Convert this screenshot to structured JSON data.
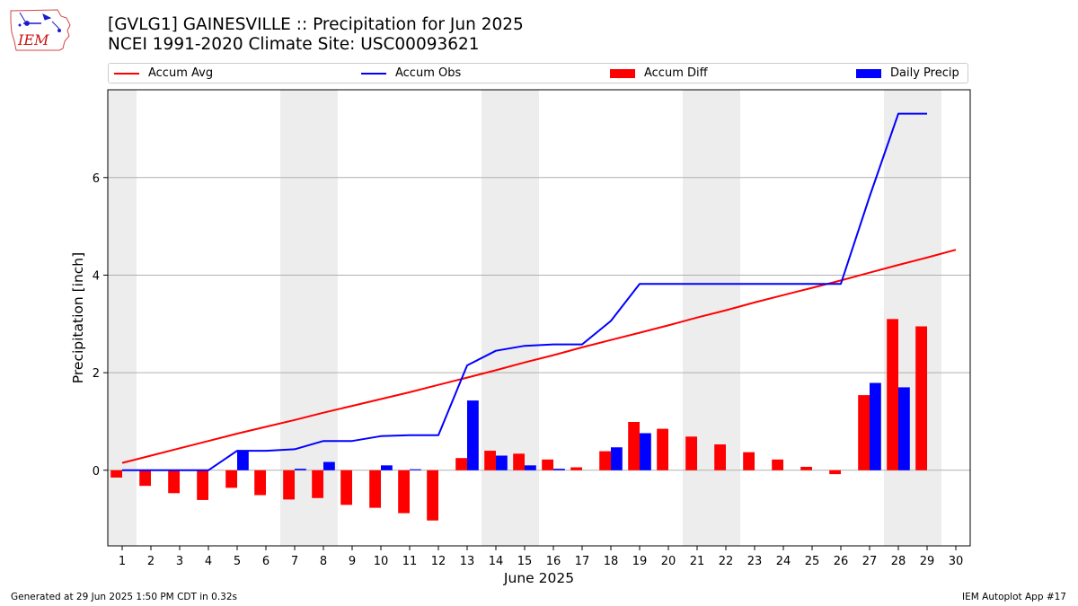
{
  "header": {
    "title": "[GVLG1] GAINESVILLE :: Precipitation for Jun 2025",
    "subtitle": "NCEI 1991-2020 Climate Site: USC00093621"
  },
  "logo": {
    "text": "IEM",
    "icon": "iem-iowa-weather-logo"
  },
  "legend": [
    {
      "label": "Accum Avg",
      "kind": "line",
      "color": "#ff0000"
    },
    {
      "label": "Accum Obs",
      "kind": "line",
      "color": "#0000ff"
    },
    {
      "label": "Accum Diff",
      "kind": "bar",
      "color": "#ff0000"
    },
    {
      "label": "Daily Precip",
      "kind": "bar",
      "color": "#0000ff"
    }
  ],
  "footer": {
    "left": "Generated at 29 Jun 2025 1:50 PM CDT in 0.32s",
    "right": "IEM Autoplot App #17"
  },
  "chart_data": {
    "type": "bar",
    "xlabel": "June 2025",
    "ylabel": "Precipitation [inch]",
    "xlim": [
      0.5,
      30.5
    ],
    "ylim": [
      -1.55,
      7.8
    ],
    "yticks": [
      0,
      2,
      4,
      6
    ],
    "grid": "y",
    "legend_position": "top",
    "weekend_shading_days": [
      1,
      7,
      8,
      14,
      15,
      21,
      22,
      28,
      29
    ],
    "categories": [
      1,
      2,
      3,
      4,
      5,
      6,
      7,
      8,
      9,
      10,
      11,
      12,
      13,
      14,
      15,
      16,
      17,
      18,
      19,
      20,
      21,
      22,
      23,
      24,
      25,
      26,
      27,
      28,
      29,
      30
    ],
    "series": [
      {
        "name": "Accum Avg",
        "type": "line",
        "color": "#ff0000",
        "values": [
          0.15,
          0.3,
          0.45,
          0.6,
          0.75,
          0.89,
          1.03,
          1.18,
          1.32,
          1.46,
          1.6,
          1.75,
          1.9,
          2.05,
          2.21,
          2.36,
          2.52,
          2.67,
          2.82,
          2.97,
          3.13,
          3.28,
          3.44,
          3.59,
          3.74,
          3.89,
          4.05,
          4.21,
          4.36,
          4.52
        ]
      },
      {
        "name": "Accum Obs",
        "type": "line",
        "color": "#0000ff",
        "values": [
          0.0,
          0.0,
          0.0,
          0.0,
          0.4,
          0.4,
          0.43,
          0.6,
          0.6,
          0.7,
          0.72,
          0.72,
          2.15,
          2.45,
          2.55,
          2.58,
          2.58,
          3.06,
          3.82,
          3.82,
          3.82,
          3.82,
          3.82,
          3.82,
          3.82,
          3.82,
          5.61,
          7.31,
          7.31,
          null
        ]
      },
      {
        "name": "Accum Diff",
        "type": "bar",
        "color": "#ff0000",
        "values": [
          -0.15,
          -0.32,
          -0.47,
          -0.61,
          -0.36,
          -0.51,
          -0.6,
          -0.57,
          -0.71,
          -0.77,
          -0.88,
          -1.03,
          0.25,
          0.4,
          0.34,
          0.22,
          0.06,
          0.39,
          0.99,
          0.85,
          0.69,
          0.53,
          0.37,
          0.22,
          0.07,
          -0.08,
          1.54,
          3.1,
          2.95,
          null
        ]
      },
      {
        "name": "Daily Precip",
        "type": "bar",
        "color": "#0000ff",
        "values": [
          0.0,
          0.0,
          0.0,
          0.0,
          0.4,
          0.0,
          0.03,
          0.17,
          0.0,
          0.1,
          0.02,
          0.0,
          1.43,
          0.3,
          0.1,
          0.03,
          0.0,
          0.47,
          0.76,
          0.0,
          0.0,
          0.0,
          0.0,
          0.0,
          0.0,
          0.0,
          1.79,
          1.7,
          0.0,
          null
        ]
      }
    ]
  }
}
